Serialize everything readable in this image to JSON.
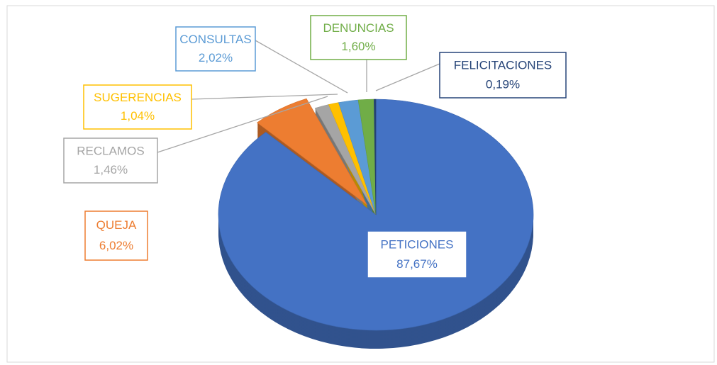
{
  "chart_data": {
    "type": "pie",
    "categories": [
      "PETICIONES",
      "QUEJA",
      "RECLAMOS",
      "SUGERENCIAS",
      "CONSULTAS",
      "DENUNCIAS",
      "FELICITACIONES"
    ],
    "values": [
      87.67,
      6.02,
      1.46,
      1.04,
      2.02,
      1.6,
      0.19
    ],
    "value_labels": [
      "87,67%",
      "6,02%",
      "1,46%",
      "1,04%",
      "2,02%",
      "1,60%",
      "0,19%"
    ],
    "colors": [
      "#4472c4",
      "#ed7d31",
      "#a5a5a5",
      "#ffc000",
      "#5b9bd5",
      "#70ad47",
      "#264478"
    ]
  }
}
